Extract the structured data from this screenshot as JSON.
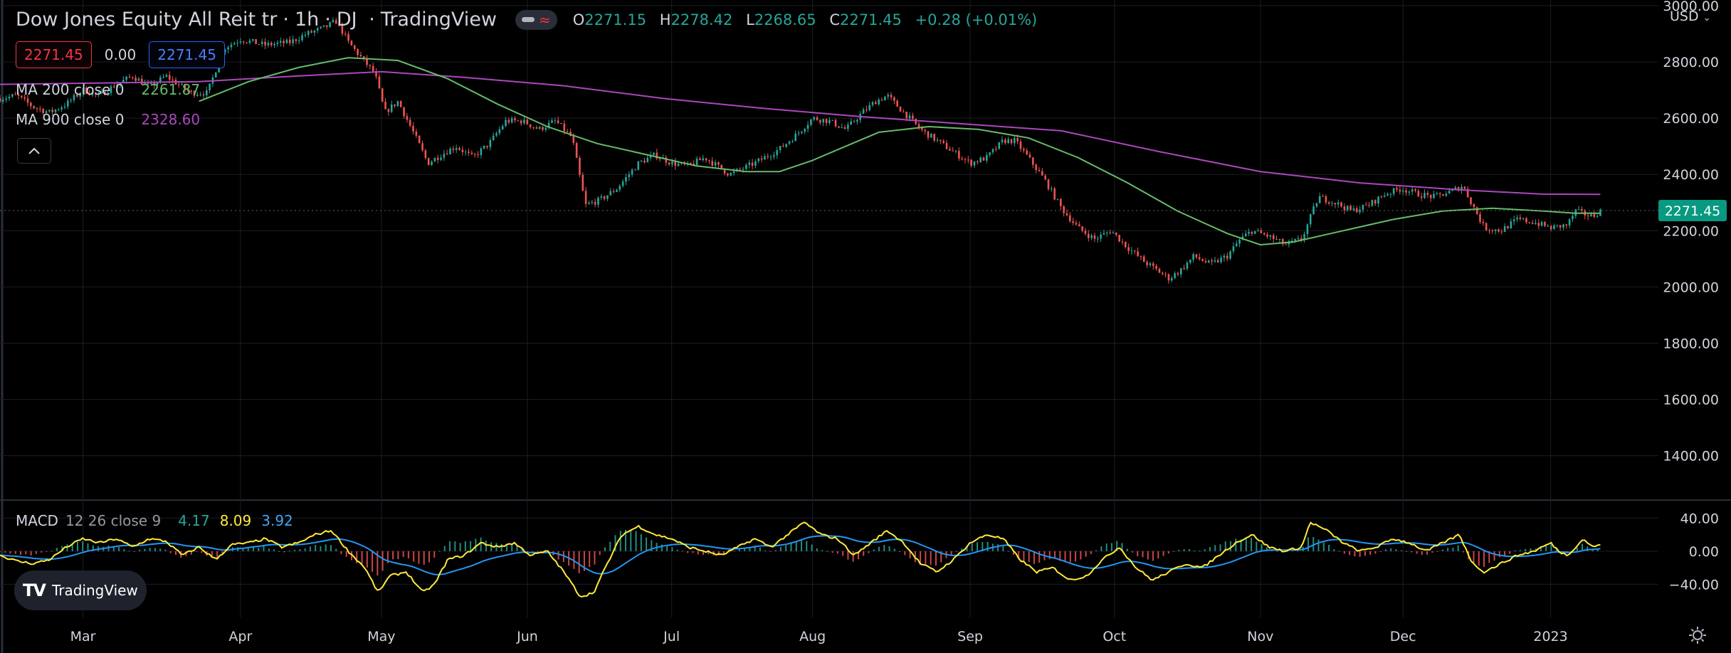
{
  "header": {
    "symbol_title": "Dow Jones Equity All Reit tr",
    "interval": "1h",
    "exchange": "DJ",
    "source": "TradingView",
    "ohlc": {
      "o_label": "O",
      "o": "2271.15",
      "h_label": "H",
      "h": "2278.42",
      "l_label": "L",
      "l": "2268.65",
      "c_label": "C",
      "c": "2271.45",
      "change": "+0.28 (+0.01%)"
    },
    "currency": "USD",
    "bid": "2271.45",
    "spread": "0.00",
    "ask": "2271.45"
  },
  "indicators": {
    "ma200": {
      "label": "MA 200 close 0",
      "value": "2261.87",
      "color": "#66bb6a"
    },
    "ma900": {
      "label": "MA 900 close 0",
      "value": "2328.60",
      "color": "#ab47bc"
    },
    "macd": {
      "label": "MACD",
      "params": "12 26 close 9",
      "hist": "4.17",
      "macd": "8.09",
      "signal": "3.92",
      "hist_color": "#26a69a",
      "macd_color": "#ffeb3b",
      "signal_color": "#2196f3"
    }
  },
  "colors": {
    "up": "#26a69a",
    "down": "#ef5350",
    "last_price": "#089981",
    "grid": "#1a1d26",
    "text": "#d1d4dc"
  },
  "chart_data": [
    {
      "type": "candlestick",
      "title": "Dow Jones Equity All Reit tr · 1h · DJ",
      "ylim": [
        1250,
        3020
      ],
      "yticks": [
        3000,
        2800,
        2600,
        2400,
        2200,
        2000,
        1800,
        1600,
        1400
      ],
      "ytick_labels": [
        "3000.00",
        "2800.00",
        "2600.00",
        "2400.00",
        "2200.00",
        "2000.00",
        "1800.00",
        "1600.00",
        "1400.00"
      ],
      "x_labels": [
        "Mar",
        "Apr",
        "May",
        "Jun",
        "Jul",
        "Aug",
        "Sep",
        "Oct",
        "Nov",
        "Dec",
        "2023"
      ],
      "x_label_pos": [
        0.05,
        0.145,
        0.23,
        0.318,
        0.405,
        0.49,
        0.585,
        0.672,
        0.76,
        0.846,
        0.935
      ],
      "last_price": 2271.45,
      "last_price_label": "2271.45",
      "price_path": [
        [
          0.0,
          2670
        ],
        [
          0.01,
          2680
        ],
        [
          0.02,
          2640
        ],
        [
          0.03,
          2620
        ],
        [
          0.04,
          2650
        ],
        [
          0.05,
          2700
        ],
        [
          0.06,
          2680
        ],
        [
          0.07,
          2720
        ],
        [
          0.08,
          2750
        ],
        [
          0.09,
          2710
        ],
        [
          0.1,
          2750
        ],
        [
          0.115,
          2690
        ],
        [
          0.125,
          2690
        ],
        [
          0.135,
          2850
        ],
        [
          0.145,
          2880
        ],
        [
          0.16,
          2860
        ],
        [
          0.175,
          2870
        ],
        [
          0.185,
          2900
        ],
        [
          0.195,
          2920
        ],
        [
          0.203,
          2945
        ],
        [
          0.21,
          2870
        ],
        [
          0.22,
          2800
        ],
        [
          0.226,
          2760
        ],
        [
          0.232,
          2620
        ],
        [
          0.24,
          2660
        ],
        [
          0.25,
          2540
        ],
        [
          0.258,
          2440
        ],
        [
          0.266,
          2470
        ],
        [
          0.275,
          2500
        ],
        [
          0.285,
          2460
        ],
        [
          0.295,
          2510
        ],
        [
          0.305,
          2590
        ],
        [
          0.315,
          2590
        ],
        [
          0.325,
          2560
        ],
        [
          0.335,
          2590
        ],
        [
          0.345,
          2530
        ],
        [
          0.353,
          2290
        ],
        [
          0.362,
          2310
        ],
        [
          0.372,
          2350
        ],
        [
          0.385,
          2440
        ],
        [
          0.395,
          2470
        ],
        [
          0.405,
          2440
        ],
        [
          0.415,
          2430
        ],
        [
          0.425,
          2460
        ],
        [
          0.44,
          2400
        ],
        [
          0.455,
          2440
        ],
        [
          0.47,
          2490
        ],
        [
          0.48,
          2540
        ],
        [
          0.49,
          2600
        ],
        [
          0.5,
          2590
        ],
        [
          0.51,
          2560
        ],
        [
          0.52,
          2620
        ],
        [
          0.528,
          2660
        ],
        [
          0.535,
          2680
        ],
        [
          0.545,
          2620
        ],
        [
          0.555,
          2560
        ],
        [
          0.565,
          2520
        ],
        [
          0.575,
          2480
        ],
        [
          0.585,
          2440
        ],
        [
          0.595,
          2460
        ],
        [
          0.605,
          2520
        ],
        [
          0.612,
          2520
        ],
        [
          0.62,
          2460
        ],
        [
          0.63,
          2380
        ],
        [
          0.64,
          2280
        ],
        [
          0.65,
          2210
        ],
        [
          0.66,
          2170
        ],
        [
          0.67,
          2200
        ],
        [
          0.68,
          2140
        ],
        [
          0.69,
          2090
        ],
        [
          0.7,
          2050
        ],
        [
          0.705,
          2030
        ],
        [
          0.712,
          2060
        ],
        [
          0.72,
          2110
        ],
        [
          0.73,
          2080
        ],
        [
          0.74,
          2110
        ],
        [
          0.748,
          2170
        ],
        [
          0.755,
          2200
        ],
        [
          0.765,
          2180
        ],
        [
          0.775,
          2150
        ],
        [
          0.785,
          2170
        ],
        [
          0.795,
          2320
        ],
        [
          0.805,
          2300
        ],
        [
          0.815,
          2270
        ],
        [
          0.825,
          2290
        ],
        [
          0.835,
          2330
        ],
        [
          0.845,
          2350
        ],
        [
          0.855,
          2330
        ],
        [
          0.865,
          2320
        ],
        [
          0.875,
          2340
        ],
        [
          0.882,
          2360
        ],
        [
          0.888,
          2290
        ],
        [
          0.895,
          2210
        ],
        [
          0.905,
          2200
        ],
        [
          0.915,
          2240
        ],
        [
          0.925,
          2230
        ],
        [
          0.935,
          2210
        ],
        [
          0.945,
          2220
        ],
        [
          0.95,
          2270
        ],
        [
          0.955,
          2260
        ],
        [
          0.96,
          2250
        ],
        [
          0.965,
          2271
        ]
      ],
      "ma200_path": [
        [
          0.12,
          2660
        ],
        [
          0.15,
          2730
        ],
        [
          0.18,
          2780
        ],
        [
          0.21,
          2815
        ],
        [
          0.24,
          2805
        ],
        [
          0.27,
          2740
        ],
        [
          0.3,
          2650
        ],
        [
          0.33,
          2570
        ],
        [
          0.36,
          2510
        ],
        [
          0.39,
          2470
        ],
        [
          0.42,
          2430
        ],
        [
          0.45,
          2410
        ],
        [
          0.47,
          2410
        ],
        [
          0.49,
          2450
        ],
        [
          0.51,
          2500
        ],
        [
          0.53,
          2550
        ],
        [
          0.56,
          2570
        ],
        [
          0.59,
          2560
        ],
        [
          0.62,
          2530
        ],
        [
          0.65,
          2460
        ],
        [
          0.68,
          2370
        ],
        [
          0.71,
          2270
        ],
        [
          0.74,
          2190
        ],
        [
          0.76,
          2150
        ],
        [
          0.78,
          2160
        ],
        [
          0.81,
          2200
        ],
        [
          0.84,
          2240
        ],
        [
          0.87,
          2270
        ],
        [
          0.9,
          2280
        ],
        [
          0.93,
          2270
        ],
        [
          0.95,
          2262
        ],
        [
          0.965,
          2262
        ]
      ],
      "ma900_path": [
        [
          0.0,
          2720
        ],
        [
          0.06,
          2725
        ],
        [
          0.12,
          2730
        ],
        [
          0.18,
          2750
        ],
        [
          0.23,
          2765
        ],
        [
          0.28,
          2745
        ],
        [
          0.34,
          2715
        ],
        [
          0.4,
          2670
        ],
        [
          0.46,
          2635
        ],
        [
          0.52,
          2605
        ],
        [
          0.58,
          2580
        ],
        [
          0.64,
          2555
        ],
        [
          0.7,
          2480
        ],
        [
          0.76,
          2410
        ],
        [
          0.82,
          2370
        ],
        [
          0.88,
          2345
        ],
        [
          0.93,
          2330
        ],
        [
          0.965,
          2329
        ]
      ]
    },
    {
      "type": "macd",
      "ylim": [
        -80,
        60
      ],
      "yticks": [
        40,
        0,
        -40
      ],
      "ytick_labels": [
        "40.00",
        "0.00",
        "−40.00"
      ],
      "macd_path": [
        [
          0.0,
          -5
        ],
        [
          0.01,
          -12
        ],
        [
          0.02,
          -15
        ],
        [
          0.03,
          -10
        ],
        [
          0.04,
          5
        ],
        [
          0.05,
          15
        ],
        [
          0.06,
          10
        ],
        [
          0.07,
          15
        ],
        [
          0.08,
          5
        ],
        [
          0.09,
          15
        ],
        [
          0.1,
          12
        ],
        [
          0.11,
          -5
        ],
        [
          0.12,
          5
        ],
        [
          0.13,
          -10
        ],
        [
          0.14,
          8
        ],
        [
          0.15,
          10
        ],
        [
          0.16,
          15
        ],
        [
          0.17,
          5
        ],
        [
          0.18,
          10
        ],
        [
          0.19,
          20
        ],
        [
          0.2,
          25
        ],
        [
          0.21,
          0
        ],
        [
          0.22,
          -20
        ],
        [
          0.228,
          -50
        ],
        [
          0.235,
          -30
        ],
        [
          0.245,
          -25
        ],
        [
          0.255,
          -50
        ],
        [
          0.262,
          -40
        ],
        [
          0.27,
          -10
        ],
        [
          0.28,
          -5
        ],
        [
          0.29,
          10
        ],
        [
          0.3,
          5
        ],
        [
          0.31,
          10
        ],
        [
          0.32,
          -5
        ],
        [
          0.33,
          0
        ],
        [
          0.34,
          -25
        ],
        [
          0.35,
          -55
        ],
        [
          0.358,
          -50
        ],
        [
          0.365,
          -20
        ],
        [
          0.375,
          20
        ],
        [
          0.385,
          30
        ],
        [
          0.395,
          20
        ],
        [
          0.405,
          15
        ],
        [
          0.415,
          5
        ],
        [
          0.425,
          0
        ],
        [
          0.435,
          -5
        ],
        [
          0.445,
          5
        ],
        [
          0.455,
          15
        ],
        [
          0.465,
          5
        ],
        [
          0.475,
          20
        ],
        [
          0.485,
          35
        ],
        [
          0.495,
          20
        ],
        [
          0.505,
          15
        ],
        [
          0.515,
          -5
        ],
        [
          0.525,
          10
        ],
        [
          0.535,
          25
        ],
        [
          0.545,
          10
        ],
        [
          0.555,
          -15
        ],
        [
          0.565,
          -25
        ],
        [
          0.575,
          -10
        ],
        [
          0.585,
          10
        ],
        [
          0.595,
          20
        ],
        [
          0.605,
          15
        ],
        [
          0.615,
          -10
        ],
        [
          0.625,
          -25
        ],
        [
          0.635,
          -20
        ],
        [
          0.645,
          -35
        ],
        [
          0.655,
          -30
        ],
        [
          0.665,
          -10
        ],
        [
          0.675,
          5
        ],
        [
          0.685,
          -20
        ],
        [
          0.695,
          -35
        ],
        [
          0.705,
          -25
        ],
        [
          0.715,
          -15
        ],
        [
          0.725,
          -20
        ],
        [
          0.735,
          -5
        ],
        [
          0.745,
          10
        ],
        [
          0.755,
          20
        ],
        [
          0.765,
          5
        ],
        [
          0.775,
          0
        ],
        [
          0.785,
          5
        ],
        [
          0.79,
          35
        ],
        [
          0.8,
          25
        ],
        [
          0.81,
          10
        ],
        [
          0.82,
          0
        ],
        [
          0.83,
          5
        ],
        [
          0.84,
          15
        ],
        [
          0.85,
          10
        ],
        [
          0.86,
          0
        ],
        [
          0.87,
          10
        ],
        [
          0.88,
          20
        ],
        [
          0.888,
          -15
        ],
        [
          0.895,
          -25
        ],
        [
          0.905,
          -15
        ],
        [
          0.915,
          -5
        ],
        [
          0.925,
          0
        ],
        [
          0.935,
          10
        ],
        [
          0.94,
          0
        ],
        [
          0.945,
          -5
        ],
        [
          0.95,
          5
        ],
        [
          0.955,
          15
        ],
        [
          0.96,
          5
        ],
        [
          0.965,
          8
        ]
      ],
      "signal_smoothing": 9,
      "hist_scale": 0.7
    }
  ]
}
